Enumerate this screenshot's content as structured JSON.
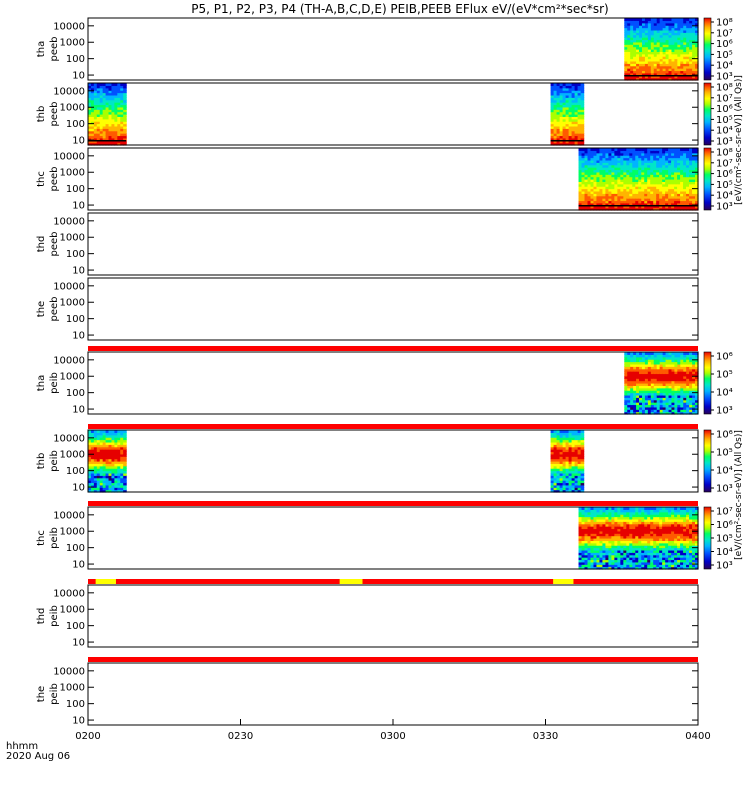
{
  "chart_data": {
    "type": "heatmap",
    "title": "P5, P1, P2, P3, P4 (TH-A,B,C,D,E) PEIB,PEEB EFlux eV/(eV*cm²*sec*sr)",
    "time_label": "hhmm",
    "date_label": "2020 Aug 06",
    "x_ticks": [
      "0200",
      "0230",
      "0300",
      "0330",
      "0400"
    ],
    "x_range_minutes": [
      0,
      120
    ],
    "y_ticks": [
      "10",
      "100",
      "1000",
      "10000"
    ],
    "y_range_eV": [
      5,
      30000
    ],
    "colorbar_label_electrons": "[eV/(cm²-sec-sr-eV)] (All Qs)]",
    "colorbar_label_ions": "[eV/(cm²-sec-sr-eV)] (All Qs)]",
    "colorbar_ticks_electrons": [
      "10³",
      "10⁴",
      "10⁵",
      "10⁶",
      "10⁷",
      "10⁸"
    ],
    "colorbar_ticks_ions_1": [
      "10³",
      "10⁴",
      "10⁵",
      "10⁶"
    ],
    "colorbar_ticks_ions_2": [
      "10³",
      "10⁴",
      "10⁵",
      "10⁶",
      "10⁷"
    ],
    "panels": [
      {
        "probe": "tha",
        "product": "peeb",
        "label_line1": "tha",
        "label_line2": "peeb",
        "intervals": [
          [
            105.5,
            120
          ]
        ],
        "has_status_bar": false
      },
      {
        "probe": "thb",
        "product": "peeb",
        "label_line1": "thb",
        "label_line2": "peeb",
        "intervals": [
          [
            0,
            7.5
          ],
          [
            91,
            97.5
          ]
        ],
        "has_status_bar": false
      },
      {
        "probe": "thc",
        "product": "peeb",
        "label_line1": "thc",
        "label_line2": "peeb",
        "intervals": [
          [
            96.5,
            120
          ]
        ],
        "has_status_bar": false
      },
      {
        "probe": "thd",
        "product": "peeb",
        "label_line1": "thd",
        "label_line2": "peeb",
        "intervals": [],
        "has_status_bar": false
      },
      {
        "probe": "the",
        "product": "peeb",
        "label_line1": "the",
        "label_line2": "peeb",
        "intervals": [],
        "has_status_bar": true
      },
      {
        "probe": "tha",
        "product": "peib",
        "label_line1": "tha",
        "label_line2": "peib",
        "intervals": [
          [
            105.5,
            120
          ]
        ],
        "has_status_bar": true
      },
      {
        "probe": "thb",
        "product": "peib",
        "label_line1": "thb",
        "label_line2": "peib",
        "intervals": [
          [
            0,
            7.5
          ],
          [
            91,
            97.5
          ]
        ],
        "has_status_bar": true
      },
      {
        "probe": "thc",
        "product": "peib",
        "label_line1": "thc",
        "label_line2": "peib",
        "intervals": [
          [
            96.5,
            120
          ]
        ],
        "has_status_bar": true
      },
      {
        "probe": "thd",
        "product": "peib",
        "label_line1": "thd",
        "label_line2": "peib",
        "intervals": [],
        "has_status_bar": true
      },
      {
        "probe": "the",
        "product": "peib",
        "label_line1": "the",
        "label_line2": "peib",
        "intervals": [],
        "has_status_bar": false
      }
    ],
    "status_bars": [
      {
        "after_panel": 4,
        "yellow_segments": []
      },
      {
        "after_panel": 5,
        "yellow_segments": []
      },
      {
        "after_panel": 6,
        "yellow_segments": []
      },
      {
        "after_panel": 7,
        "yellow_segments": [
          [
            1.5,
            5.5
          ],
          [
            49.5,
            54
          ],
          [
            91.5,
            95.5
          ]
        ]
      },
      {
        "after_panel": 8,
        "yellow_segments": []
      }
    ],
    "status_colors": {
      "normal": "#ff0000",
      "flag": "#ffff00"
    },
    "colormap": [
      "#28005a",
      "#0000c8",
      "#0050ff",
      "#00b4ff",
      "#00e6c8",
      "#00ff64",
      "#aaff00",
      "#ffff00",
      "#ffb400",
      "#ff5a00",
      "#e60000"
    ]
  }
}
